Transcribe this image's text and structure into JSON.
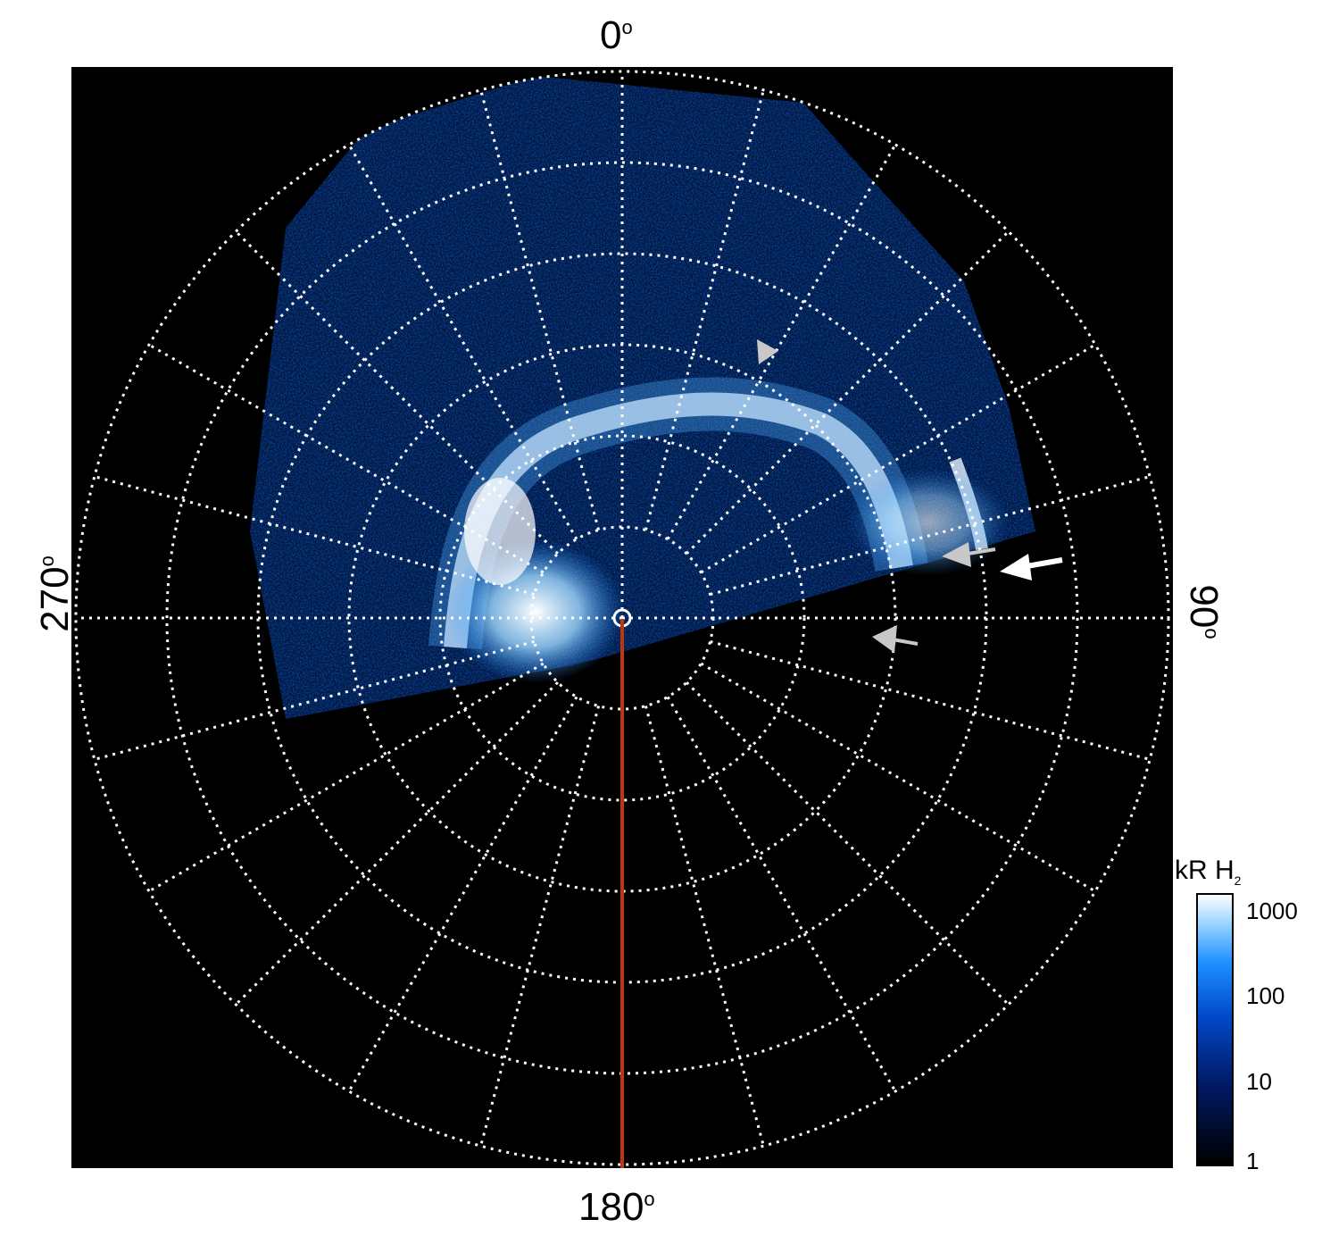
{
  "axis_labels": {
    "top": "0",
    "right": "90",
    "bottom": "180",
    "left": "270",
    "degree_symbol": "o"
  },
  "colorbar": {
    "unit": "kR H",
    "unit_subscript": "2",
    "ticks": [
      "1000",
      "100",
      "10",
      "1"
    ],
    "colors": [
      "#000000",
      "#001a66",
      "#0049c8",
      "#1e90ff",
      "#9fd8ff",
      "#ffffff"
    ]
  },
  "overlay": {
    "grid_color": "#ffffff",
    "meridian_line_color": "#c0360c",
    "arrow_white": "#ffffff",
    "arrow_grey": "#c8c8c8"
  }
}
